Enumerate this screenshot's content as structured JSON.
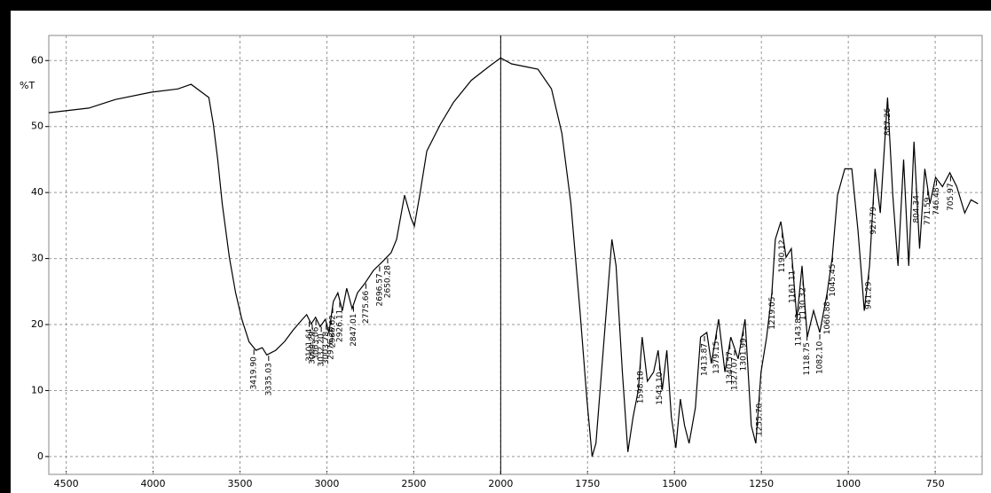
{
  "chart_data": {
    "type": "line",
    "y_label": "%T",
    "x": [
      4600,
      4370,
      4216,
      4011,
      3858,
      3781,
      3679,
      3653,
      3628,
      3602,
      3561,
      3525,
      3489,
      3448,
      3408,
      3372,
      3346,
      3295,
      3244,
      3193,
      3141,
      3116,
      3090,
      3065,
      3039,
      3009,
      2988,
      2963,
      2937,
      2911,
      2886,
      2855,
      2824,
      2783,
      2732,
      2681,
      2630,
      2599,
      2553,
      2517,
      2497,
      2466,
      2425,
      2348,
      2271,
      2169,
      2067,
      2000,
      1969,
      1931,
      1893,
      1854,
      1824,
      1798,
      1772,
      1752,
      1737,
      1726,
      1706,
      1680,
      1668,
      1650,
      1634,
      1619,
      1604,
      1593,
      1578,
      1560,
      1547,
      1535,
      1522,
      1509,
      1496,
      1483,
      1471,
      1458,
      1440,
      1425,
      1407,
      1394,
      1373,
      1355,
      1338,
      1317,
      1297,
      1279,
      1266,
      1251,
      1235,
      1220,
      1210,
      1194,
      1179,
      1164,
      1148,
      1133,
      1118,
      1100,
      1082,
      1061,
      1046,
      1031,
      1010,
      990,
      972,
      954,
      939,
      923,
      908,
      887,
      872,
      857,
      841,
      826,
      811,
      795,
      780,
      765,
      749,
      729,
      708,
      688,
      665,
      647,
      627
    ],
    "series": [
      {
        "color": "#000000",
        "values": [
          52.1,
          52.8,
          54.1,
          55.2,
          55.7,
          56.4,
          54.4,
          50.3,
          45,
          38.3,
          30.2,
          24.8,
          20.8,
          17.4,
          16.1,
          16.5,
          15.4,
          16.1,
          17.4,
          19.2,
          20.8,
          21.5,
          20.1,
          21.1,
          19.7,
          20.8,
          18.8,
          23.5,
          24.8,
          22.1,
          25.5,
          22.4,
          24.8,
          26.2,
          28.2,
          29.5,
          30.9,
          32.9,
          39.6,
          36.2,
          34.9,
          39.6,
          46.3,
          50.3,
          53.7,
          57,
          59.1,
          60.4,
          59.5,
          59.1,
          58.7,
          55.7,
          49,
          38.3,
          22.1,
          8.7,
          0,
          2,
          15.4,
          32.9,
          28.9,
          12.8,
          0.7,
          6,
          10.1,
          18.1,
          11.4,
          12.8,
          16.1,
          10.1,
          16.1,
          6,
          1.3,
          8.7,
          4.7,
          2,
          7.4,
          18.1,
          18.8,
          14.1,
          20.8,
          12.8,
          18.1,
          14.8,
          20.8,
          4.7,
          2,
          12.8,
          18.1,
          24.8,
          32.9,
          35.6,
          30.2,
          31.5,
          20.8,
          28.9,
          18.1,
          22.1,
          18.8,
          24.8,
          30.2,
          39.6,
          43.6,
          43.6,
          34.2,
          22.1,
          28.9,
          43.6,
          36.9,
          54.4,
          39.6,
          28.9,
          45,
          28.9,
          47.7,
          31.5,
          43.6,
          38.3,
          42.3,
          40.9,
          43,
          40.9,
          36.9,
          38.9,
          38.3
        ]
      }
    ],
    "xlim": [
      4600,
      615
    ],
    "ylim": [
      -2.7,
      63.8
    ],
    "xticks": [
      4500,
      4000,
      3500,
      3000,
      2500,
      2000,
      1750,
      1500,
      1250,
      1000,
      750
    ],
    "yticks": [
      0,
      10,
      20,
      30,
      40,
      50,
      60
    ],
    "grid": true,
    "x_scale_change": 2000,
    "peaks": [
      {
        "value": 3419.9,
        "label": "3419.90"
      },
      {
        "value": 3335.03,
        "label": "3335.03"
      },
      {
        "value": 3101.64,
        "label": "3101.64"
      },
      {
        "value": 3084.29,
        "label": "3084.29"
      },
      {
        "value": 3063.06,
        "label": "3063.06"
      },
      {
        "value": 3032.2,
        "label": "3032.20"
      },
      {
        "value": 3003.78,
        "label": "3003.78"
      },
      {
        "value": 2976.28,
        "label": "2976.28"
      },
      {
        "value": 2966.62,
        "label": "2966.62"
      },
      {
        "value": 2926.11,
        "label": "2926.11"
      },
      {
        "value": 2847.01,
        "label": "2847.01"
      },
      {
        "value": 2775.66,
        "label": "2775.66"
      },
      {
        "value": 2696.57,
        "label": "2696.57"
      },
      {
        "value": 2650.28,
        "label": "2650.28"
      },
      {
        "value": 1598.18,
        "label": "1598.18"
      },
      {
        "value": 1543.1,
        "label": "1543.10"
      },
      {
        "value": 1413.87,
        "label": "1413.87"
      },
      {
        "value": 1379.15,
        "label": "1379.15"
      },
      {
        "value": 1340.57,
        "label": "1340.57"
      },
      {
        "value": 1327.07,
        "label": "1327.07"
      },
      {
        "value": 1301.99,
        "label": "1301.99"
      },
      {
        "value": 1255.7,
        "label": "1255.70"
      },
      {
        "value": 1219.05,
        "label": "1219.05"
      },
      {
        "value": 1190.12,
        "label": "1190.12"
      },
      {
        "value": 1161.11,
        "label": "1161.11"
      },
      {
        "value": 1143.83,
        "label": "1143.83"
      },
      {
        "value": 1130.32,
        "label": "1130.32"
      },
      {
        "value": 1118.75,
        "label": "1118.75"
      },
      {
        "value": 1082.1,
        "label": "1082.10"
      },
      {
        "value": 1060.88,
        "label": "1060.88"
      },
      {
        "value": 1045.45,
        "label": "1045.45"
      },
      {
        "value": 941.29,
        "label": "941.29"
      },
      {
        "value": 927.79,
        "label": "927.79"
      },
      {
        "value": 887.26,
        "label": "887.26"
      },
      {
        "value": 804.34,
        "label": "804.34"
      },
      {
        "value": 771.59,
        "label": "771.59"
      },
      {
        "value": 746.48,
        "label": "746.48"
      },
      {
        "value": 705.97,
        "label": "705.97"
      }
    ]
  }
}
